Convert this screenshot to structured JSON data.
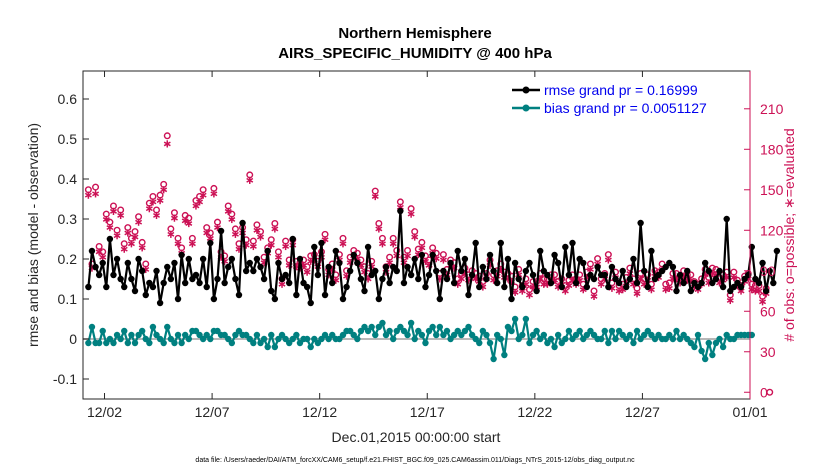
{
  "chart_data": {
    "type": "line",
    "title": "Northern Hemisphere",
    "subtitle": "AIRS_SPECIFIC_HUMIDITY @ 400 hPa",
    "xlabel": "Dec.01,2015 00:00:00 start",
    "ylabel_left": "rmse and bias (model - observation)",
    "ylabel_right": "# of obs: o=possible; ∗=evaluated",
    "x_ticks": [
      "12/02",
      "12/07",
      "12/12",
      "12/17",
      "12/22",
      "12/27",
      "01/01"
    ],
    "x_tick_days": [
      1,
      6,
      11,
      16,
      21,
      26,
      31
    ],
    "xlim": [
      0,
      31
    ],
    "ylim_left": [
      -0.15,
      0.67
    ],
    "yticks_left": [
      "-0.1",
      "0",
      "0.1",
      "0.2",
      "0.3",
      "0.4",
      "0.5",
      "0.6"
    ],
    "ylim_right": [
      -5,
      238
    ],
    "yticks_right": [
      "0",
      "30",
      "60",
      "90",
      "120",
      "150",
      "180",
      "210"
    ],
    "grid": false,
    "legend_position": "top-right",
    "series": [
      {
        "name": "rmse grand pr = 0.16999",
        "color": "#000000",
        "axis": "left",
        "values": [
          0.13,
          0.22,
          0.18,
          0.16,
          0.19,
          0.13,
          0.25,
          0.16,
          0.2,
          0.15,
          0.13,
          0.19,
          0.15,
          0.12,
          0.2,
          0.17,
          0.11,
          0.14,
          0.13,
          0.17,
          0.09,
          0.14,
          0.18,
          0.15,
          0.19,
          0.1,
          0.21,
          0.14,
          0.2,
          0.15,
          0.16,
          0.14,
          0.2,
          0.13,
          0.24,
          0.1,
          0.15,
          0.27,
          0.14,
          0.18,
          0.2,
          0.15,
          0.11,
          0.29,
          0.17,
          0.19,
          0.17,
          0.2,
          0.18,
          0.15,
          0.22,
          0.12,
          0.1,
          0.19,
          0.15,
          0.16,
          0.14,
          0.25,
          0.11,
          0.2,
          0.14,
          0.13,
          0.09,
          0.23,
          0.16,
          0.24,
          0.11,
          0.18,
          0.14,
          0.22,
          0.19,
          0.1,
          0.13,
          0.17,
          0.21,
          0.19,
          0.15,
          0.12,
          0.23,
          0.16,
          0.17,
          0.1,
          0.15,
          0.18,
          0.14,
          0.18,
          0.17,
          0.32,
          0.14,
          0.18,
          0.16,
          0.2,
          0.15,
          0.21,
          0.13,
          0.16,
          0.21,
          0.17,
          0.1,
          0.17,
          0.15,
          0.19,
          0.14,
          0.22,
          0.17,
          0.2,
          0.11,
          0.16,
          0.24,
          0.13,
          0.18,
          0.15,
          0.21,
          0.17,
          0.14,
          0.24,
          0.13,
          0.2,
          0.1,
          0.19,
          0.15,
          0.13,
          0.17,
          0.19,
          0.16,
          0.12,
          0.22,
          0.17,
          0.16,
          0.14,
          0.21,
          0.19,
          0.13,
          0.23,
          0.16,
          0.24,
          0.14,
          0.2,
          0.19,
          0.13,
          0.16,
          0.15,
          0.18,
          0.16,
          0.16,
          0.13,
          0.18,
          0.15,
          0.14,
          0.17,
          0.13,
          0.15,
          0.2,
          0.14,
          0.29,
          0.17,
          0.13,
          0.22,
          0.15,
          0.16,
          0.17,
          0.18,
          0.19,
          0.18,
          0.12,
          0.16,
          0.14,
          0.17,
          0.12,
          0.14,
          0.13,
          0.14,
          0.19,
          0.17,
          0.14,
          0.15,
          0.17,
          0.13,
          0.3,
          0.12,
          0.13,
          0.14,
          0.13,
          0.15,
          0.16,
          0.23,
          0.15,
          0.14,
          0.19,
          0.12,
          0.17,
          0.14,
          0.22
        ]
      },
      {
        "name": "bias grand pr = 0.0051127",
        "color": "#008080",
        "axis": "left",
        "values": [
          -0.01,
          0.03,
          -0.01,
          -0.01,
          0.02,
          -0.01,
          0.0,
          -0.01,
          0.01,
          0.0,
          0.02,
          -0.01,
          0.01,
          -0.01,
          0.01,
          0.02,
          0.0,
          -0.01,
          0.03,
          0.01,
          0.0,
          -0.01,
          0.03,
          0.0,
          -0.01,
          0.01,
          -0.01,
          0.01,
          0.0,
          0.02,
          0.02,
          0.01,
          0.0,
          0.01,
          0.0,
          0.02,
          0.02,
          0.01,
          0.01,
          0.0,
          -0.01,
          0.01,
          0.02,
          0.01,
          0.01,
          0.0,
          -0.01,
          0.01,
          -0.01,
          0.0,
          -0.02,
          0.01,
          -0.02,
          0.0,
          0.01,
          0.0,
          -0.01,
          0.0,
          0.01,
          -0.01,
          0.0,
          0.0,
          -0.02,
          0.0,
          -0.01,
          0.0,
          0.01,
          0.0,
          0.01,
          0.0,
          0.0,
          0.01,
          0.02,
          0.02,
          0.01,
          0.0,
          0.02,
          0.03,
          0.02,
          0.03,
          0.01,
          0.03,
          0.04,
          0.01,
          0.02,
          0.0,
          0.02,
          0.03,
          0.02,
          0.01,
          0.04,
          0.0,
          0.02,
          0.01,
          -0.01,
          0.02,
          0.03,
          0.01,
          0.03,
          0.01,
          0.02,
          0.0,
          0.01,
          0.02,
          0.01,
          0.02,
          0.03,
          0.01,
          0.0,
          -0.01,
          0.02,
          0.01,
          -0.01,
          -0.05,
          0.01,
          0.0,
          -0.04,
          0.03,
          0.02,
          0.05,
          0.0,
          0.01,
          0.05,
          -0.01,
          0.01,
          0.02,
          0.0,
          0.01,
          -0.01,
          0.0,
          -0.02,
          0.01,
          -0.01,
          0.0,
          0.02,
          0.0,
          0.01,
          0.02,
          0.0,
          0.01,
          0.02,
          0.01,
          0.0,
          0.0,
          0.02,
          -0.01,
          0.02,
          0.0,
          0.02,
          0.01,
          0.0,
          0.01,
          -0.01,
          0.02,
          0.0,
          0.01,
          0.02,
          0.01,
          0.0,
          0.01,
          0.0,
          0.0,
          0.01,
          0.0,
          0.02,
          0.0,
          0.01,
          0.0,
          -0.01,
          -0.02,
          0.01,
          -0.03,
          -0.05,
          -0.01,
          -0.04,
          -0.01,
          0.0,
          -0.02,
          0.01,
          0.0,
          0.0,
          0.01,
          0.01,
          0.01,
          0.01,
          0.01
        ]
      },
      {
        "name": "possible",
        "color": "#CC1155",
        "axis": "right",
        "marker": "circle",
        "values": [
          150,
          95,
          152,
          108,
          104,
          132,
          126,
          138,
          120,
          135,
          110,
          122,
          114,
          119,
          130,
          111,
          95,
          140,
          145,
          135,
          146,
          154,
          190,
          121,
          133,
          114,
          107,
          131,
          129,
          114,
          142,
          145,
          150,
          122,
          118,
          151,
          126,
          104,
          101,
          138,
          132,
          121,
          110,
          122,
          113,
          161,
          112,
          124,
          119,
          100,
          107,
          113,
          125,
          104,
          84,
          112,
          98,
          113,
          97,
          96,
          98,
          93,
          101,
          102,
          97,
          104,
          117,
          91,
          95,
          87,
          102,
          114,
          90,
          100,
          105,
          103,
          98,
          93,
          88,
          97,
          149,
          125,
          114,
          93,
          100,
          114,
          105,
          141,
          100,
          105,
          136,
          119,
          106,
          111,
          101,
          98,
          107,
          103,
          88,
          102,
          91,
          98,
          96,
          84,
          88,
          92,
          87,
          90,
          88,
          86,
          82,
          88,
          98,
          87,
          90,
          95,
          89,
          88,
          86,
          78,
          91,
          79,
          84,
          76,
          82,
          82,
          88,
          84,
          84,
          87,
          87,
          82,
          84,
          79,
          83,
          87,
          84,
          87,
          80,
          89,
          95,
          75,
          99,
          84,
          88,
          102,
          81,
          89,
          79,
          80,
          85,
          92,
          84,
          77,
          88,
          84,
          87,
          80,
          90,
          89,
          95,
          80,
          81,
          88,
          88,
          85,
          90,
          87,
          87,
          82,
          80,
          84,
          91,
          85,
          92,
          91,
          85,
          87,
          89,
          72,
          89,
          83,
          79,
          86,
          88,
          80,
          79,
          79,
          71,
          77,
          0
        ]
      },
      {
        "name": "evaluated",
        "color": "#CC1155",
        "axis": "right",
        "marker": "star",
        "values": [
          146,
          92,
          147,
          104,
          100,
          128,
          122,
          134,
          116,
          131,
          106,
          118,
          110,
          115,
          126,
          107,
          91,
          136,
          141,
          131,
          142,
          150,
          184,
          117,
          129,
          110,
          103,
          127,
          125,
          110,
          138,
          141,
          146,
          118,
          114,
          147,
          122,
          100,
          97,
          134,
          128,
          117,
          106,
          118,
          109,
          157,
          108,
          120,
          115,
          96,
          103,
          109,
          121,
          100,
          80,
          108,
          94,
          109,
          93,
          92,
          94,
          89,
          97,
          98,
          93,
          100,
          113,
          87,
          91,
          83,
          98,
          110,
          86,
          96,
          101,
          99,
          94,
          89,
          84,
          93,
          145,
          121,
          110,
          89,
          96,
          110,
          101,
          137,
          96,
          101,
          132,
          115,
          102,
          107,
          97,
          94,
          103,
          99,
          84,
          98,
          87,
          94,
          92,
          80,
          84,
          88,
          83,
          86,
          84,
          82,
          78,
          84,
          94,
          83,
          86,
          91,
          85,
          84,
          82,
          74,
          87,
          75,
          80,
          72,
          78,
          78,
          84,
          80,
          80,
          83,
          83,
          78,
          80,
          75,
          79,
          83,
          80,
          83,
          76,
          85,
          91,
          71,
          95,
          80,
          84,
          98,
          77,
          85,
          75,
          76,
          81,
          88,
          80,
          73,
          84,
          80,
          83,
          76,
          86,
          85,
          91,
          76,
          77,
          84,
          84,
          81,
          86,
          83,
          83,
          78,
          76,
          80,
          87,
          81,
          88,
          87,
          81,
          83,
          85,
          68,
          85,
          79,
          75,
          82,
          84,
          76,
          75,
          75,
          67,
          73
        ]
      }
    ]
  },
  "footer": "data file: /Users/raeder/DAI/ATM_forcXX/CAM6_setup/f.e21.FHIST_BGC.f09_025.CAM6assim.011/Diags_NTrS_2015-12/obs_diag_output.nc"
}
